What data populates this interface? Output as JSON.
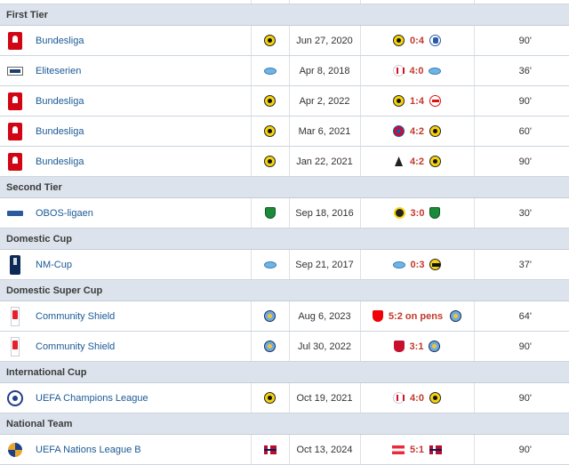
{
  "groups": [
    {
      "title": "First Tier",
      "rows": [
        {
          "competition": "Bundesliga",
          "logo": "bundesliga-logo",
          "team": "bvb-crest",
          "date": "Jun 27, 2020",
          "home": "bvb-crest",
          "score": "0:4",
          "away": "hoffenheim-crest",
          "minutes": "90'"
        },
        {
          "competition": "Eliteserien",
          "logo": "eliteserien-logo",
          "team": "molde-crest",
          "date": "Apr 8, 2018",
          "home": "opponent-crest",
          "score": "4:0",
          "away": "molde-crest",
          "minutes": "36'"
        },
        {
          "competition": "Bundesliga",
          "logo": "bundesliga-logo",
          "team": "bvb-crest",
          "date": "Apr 2, 2022",
          "home": "bvb-crest",
          "score": "1:4",
          "away": "leipzig-crest",
          "minutes": "90'"
        },
        {
          "competition": "Bundesliga",
          "logo": "bundesliga-logo",
          "team": "bvb-crest",
          "date": "Mar 6, 2021",
          "home": "bayern-crest",
          "score": "4:2",
          "away": "bvb-crest",
          "minutes": "60'"
        },
        {
          "competition": "Bundesliga",
          "logo": "bundesliga-logo",
          "team": "bvb-crest",
          "date": "Jan 22, 2021",
          "home": "gladbach-crest",
          "score": "4:2",
          "away": "bvb-crest",
          "minutes": "90'"
        }
      ]
    },
    {
      "title": "Second Tier",
      "rows": [
        {
          "competition": "OBOS-ligaen",
          "logo": "obos-logo",
          "team": "bryne-crest",
          "date": "Sep 18, 2016",
          "home": "opponent-crest",
          "score": "3:0",
          "away": "bryne-crest",
          "minutes": "30'"
        }
      ]
    },
    {
      "title": "Domestic Cup",
      "rows": [
        {
          "competition": "NM-Cup",
          "logo": "nm-cup-logo",
          "team": "molde-crest",
          "date": "Sep 21, 2017",
          "home": "molde-crest",
          "score": "0:3",
          "away": "opponent-crest",
          "minutes": "37'"
        }
      ]
    },
    {
      "title": "Domestic Super Cup",
      "rows": [
        {
          "competition": "Community Shield",
          "logo": "community-shield-logo",
          "team": "man-city-crest",
          "date": "Aug 6, 2023",
          "home": "arsenal-crest",
          "score": "5:2 on pens",
          "away": "man-city-crest",
          "minutes": "64'"
        },
        {
          "competition": "Community Shield",
          "logo": "community-shield-logo",
          "team": "man-city-crest",
          "date": "Jul 30, 2022",
          "home": "liverpool-crest",
          "score": "3:1",
          "away": "man-city-crest",
          "minutes": "90'"
        }
      ]
    },
    {
      "title": "International Cup",
      "rows": [
        {
          "competition": "UEFA Champions League",
          "logo": "champions-league-logo",
          "team": "bvb-crest",
          "date": "Oct 19, 2021",
          "home": "ajax-crest",
          "score": "4:0",
          "away": "bvb-crest",
          "minutes": "90'"
        }
      ]
    },
    {
      "title": "National Team",
      "rows": [
        {
          "competition": "UEFA Nations League B",
          "logo": "nations-league-logo",
          "team": "norway-flag",
          "date": "Oct 13, 2024",
          "home": "austria-flag",
          "score": "5:1",
          "away": "norway-flag",
          "minutes": "90'"
        }
      ]
    }
  ],
  "colors": {
    "header_bg": "#dce3ec",
    "link": "#1a5a96",
    "score": "#c0392b"
  }
}
